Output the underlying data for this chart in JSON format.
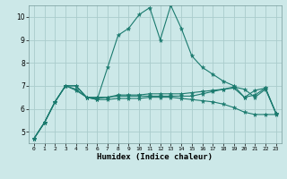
{
  "title": "",
  "xlabel": "Humidex (Indice chaleur)",
  "bg_color": "#cce8e8",
  "grid_color": "#aacccc",
  "line_color": "#1a7a6e",
  "xlim": [
    -0.5,
    23.5
  ],
  "ylim": [
    4.5,
    10.5
  ],
  "yticks": [
    5,
    6,
    7,
    8,
    9,
    10
  ],
  "xticks": [
    0,
    1,
    2,
    3,
    4,
    5,
    6,
    7,
    8,
    9,
    10,
    11,
    12,
    13,
    14,
    15,
    16,
    17,
    18,
    19,
    20,
    21,
    22,
    23
  ],
  "lines": [
    [
      4.7,
      5.4,
      6.3,
      7.0,
      6.85,
      6.5,
      6.4,
      7.8,
      9.2,
      9.5,
      10.1,
      10.4,
      9.0,
      10.5,
      9.5,
      8.3,
      7.8,
      7.5,
      7.2,
      7.0,
      6.5,
      6.6,
      6.9,
      5.8
    ],
    [
      4.7,
      5.4,
      6.3,
      7.0,
      7.0,
      6.5,
      6.45,
      6.5,
      6.55,
      6.55,
      6.55,
      6.55,
      6.55,
      6.55,
      6.55,
      6.55,
      6.65,
      6.75,
      6.85,
      6.9,
      6.5,
      6.8,
      6.9,
      5.8
    ],
    [
      4.7,
      5.4,
      6.3,
      7.0,
      6.8,
      6.5,
      6.4,
      6.4,
      6.45,
      6.45,
      6.45,
      6.5,
      6.5,
      6.5,
      6.45,
      6.4,
      6.35,
      6.3,
      6.2,
      6.05,
      5.85,
      5.75,
      5.75,
      5.75
    ],
    [
      4.7,
      5.4,
      6.3,
      7.0,
      7.0,
      6.5,
      6.5,
      6.5,
      6.6,
      6.6,
      6.6,
      6.65,
      6.65,
      6.65,
      6.65,
      6.7,
      6.75,
      6.8,
      6.85,
      6.95,
      6.85,
      6.5,
      6.85,
      5.8
    ]
  ]
}
